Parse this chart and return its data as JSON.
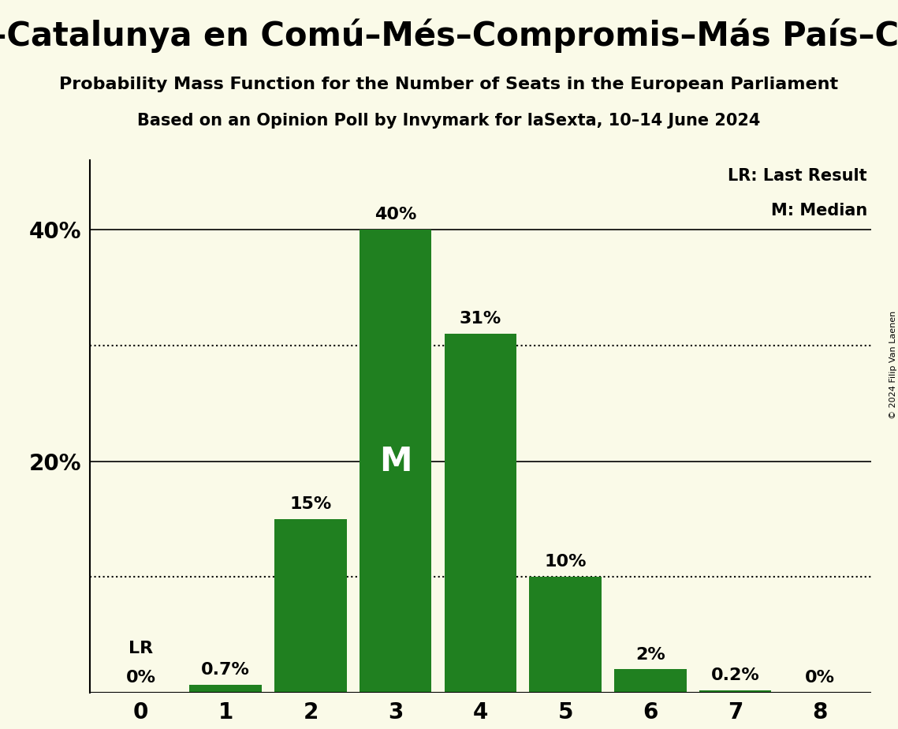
{
  "title_line1": "ar–Catalunya en Comú–Més–Compromis–Más País–Chu",
  "subtitle1": "Probability Mass Function for the Number of Seats in the European Parliament",
  "subtitle2": "Based on an Opinion Poll by Invymark for laSexta, 10–14 June 2024",
  "seats": [
    0,
    1,
    2,
    3,
    4,
    5,
    6,
    7,
    8
  ],
  "probabilities": [
    0.0,
    0.007,
    0.15,
    0.4,
    0.31,
    0.1,
    0.02,
    0.002,
    0.0
  ],
  "prob_labels": [
    "0%",
    "0.7%",
    "15%",
    "40%",
    "31%",
    "10%",
    "2%",
    "0.2%",
    "0%"
  ],
  "bar_color": "#208020",
  "background_color": "#FAFAE8",
  "median_seat": 3,
  "lr_seat": 0,
  "solid_lines": [
    0.2,
    0.4
  ],
  "dotted_lines": [
    0.1,
    0.3
  ],
  "ylim": [
    0,
    0.46
  ],
  "yticks": [
    0.2,
    0.4
  ],
  "ytick_labels": [
    "20%",
    "40%"
  ],
  "legend_lr": "LR: Last Result",
  "legend_m": "M: Median",
  "copyright_text": "© 2024 Filip Van Laenen"
}
